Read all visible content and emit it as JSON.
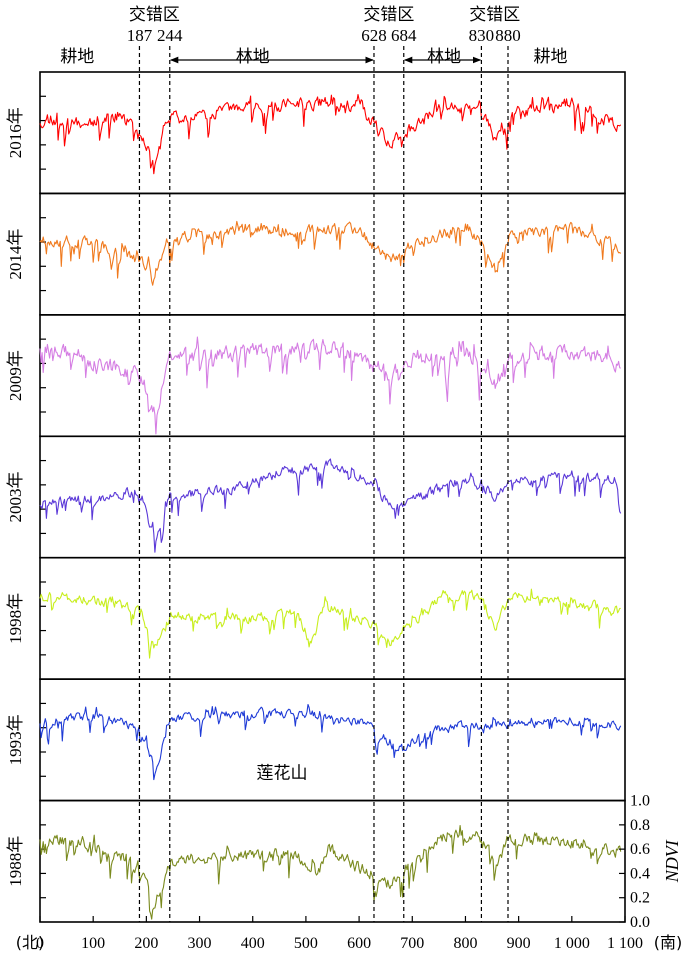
{
  "chart_data": {
    "type": "line",
    "x_axis": {
      "min": 0,
      "max": 1100,
      "ticks": [
        0,
        100,
        200,
        300,
        400,
        500,
        600,
        700,
        800,
        900,
        1000,
        1100
      ],
      "tick_labels": [
        "0",
        "100",
        "200",
        "300",
        "400",
        "500",
        "600",
        "700",
        "800",
        "900",
        "1 000",
        "1 100"
      ],
      "left_label": "(北)",
      "right_label": "(南)"
    },
    "ndvi_axis": {
      "label": "NDVI",
      "min": 0.0,
      "max": 1.0,
      "ticks": [
        0.0,
        0.2,
        0.4,
        0.6,
        0.8,
        1.0
      ],
      "tick_labels": [
        "0.0",
        "0.2",
        "0.4",
        "0.6",
        "0.8",
        "1.0"
      ]
    },
    "boundaries": [
      187,
      244,
      628,
      684,
      830,
      880
    ],
    "zone_labels": [
      {
        "text": "交错区",
        "x": 215
      },
      {
        "text": "交错区",
        "x": 656
      },
      {
        "text": "交错区",
        "x": 855
      }
    ],
    "boundary_labels": [
      {
        "text": "187",
        "x": 187
      },
      {
        "text": "244",
        "x": 244
      },
      {
        "text": "628",
        "x": 628
      },
      {
        "text": "684",
        "x": 684
      },
      {
        "text": "830",
        "x": 830
      },
      {
        "text": "880",
        "x": 880
      }
    ],
    "land_labels": [
      {
        "text": "耕地",
        "x": 70
      },
      {
        "text": "林地",
        "x": 400,
        "arrow_from": 244,
        "arrow_to": 628
      },
      {
        "text": "林地",
        "x": 760,
        "arrow_from": 684,
        "arrow_to": 830
      },
      {
        "text": "耕地",
        "x": 960
      }
    ],
    "annotation": {
      "text": "莲花山",
      "x": 520,
      "panel": "1993年"
    },
    "series": [
      {
        "name": "2016年",
        "color": "#ff0000",
        "seed": 11,
        "base": 0.62,
        "amp": 0.18,
        "profile": [
          [
            0,
            0.6
          ],
          [
            80,
            0.58
          ],
          [
            150,
            0.65
          ],
          [
            187,
            0.45
          ],
          [
            215,
            0.3
          ],
          [
            244,
            0.62
          ],
          [
            400,
            0.7
          ],
          [
            500,
            0.75
          ],
          [
            600,
            0.72
          ],
          [
            628,
            0.55
          ],
          [
            660,
            0.4
          ],
          [
            684,
            0.5
          ],
          [
            760,
            0.72
          ],
          [
            830,
            0.7
          ],
          [
            855,
            0.4
          ],
          [
            880,
            0.66
          ],
          [
            1000,
            0.74
          ],
          [
            1090,
            0.55
          ]
        ]
      },
      {
        "name": "2014年",
        "color": "#f07a1e",
        "seed": 23,
        "base": 0.62,
        "amp": 0.16,
        "profile": [
          [
            0,
            0.62
          ],
          [
            100,
            0.6
          ],
          [
            187,
            0.45
          ],
          [
            215,
            0.35
          ],
          [
            244,
            0.64
          ],
          [
            400,
            0.7
          ],
          [
            600,
            0.7
          ],
          [
            628,
            0.55
          ],
          [
            660,
            0.45
          ],
          [
            684,
            0.55
          ],
          [
            800,
            0.74
          ],
          [
            830,
            0.6
          ],
          [
            855,
            0.35
          ],
          [
            880,
            0.66
          ],
          [
            1000,
            0.72
          ],
          [
            1090,
            0.55
          ]
        ]
      },
      {
        "name": "2009年",
        "color": "#d57ee3",
        "seed": 37,
        "base": 0.65,
        "amp": 0.22,
        "profile": [
          [
            0,
            0.75
          ],
          [
            100,
            0.62
          ],
          [
            187,
            0.5
          ],
          [
            215,
            0.2
          ],
          [
            244,
            0.66
          ],
          [
            400,
            0.7
          ],
          [
            560,
            0.74
          ],
          [
            628,
            0.58
          ],
          [
            660,
            0.5
          ],
          [
            684,
            0.62
          ],
          [
            800,
            0.72
          ],
          [
            830,
            0.55
          ],
          [
            855,
            0.4
          ],
          [
            880,
            0.68
          ],
          [
            1000,
            0.7
          ],
          [
            1090,
            0.6
          ]
        ]
      },
      {
        "name": "2003年",
        "color": "#5b39d8",
        "seed": 41,
        "base": 0.52,
        "amp": 0.14,
        "profile": [
          [
            0,
            0.45
          ],
          [
            120,
            0.5
          ],
          [
            187,
            0.55
          ],
          [
            215,
            0.12
          ],
          [
            244,
            0.52
          ],
          [
            350,
            0.55
          ],
          [
            450,
            0.7
          ],
          [
            550,
            0.78
          ],
          [
            628,
            0.6
          ],
          [
            660,
            0.4
          ],
          [
            684,
            0.45
          ],
          [
            780,
            0.62
          ],
          [
            830,
            0.6
          ],
          [
            855,
            0.5
          ],
          [
            880,
            0.62
          ],
          [
            1000,
            0.68
          ],
          [
            1080,
            0.65
          ],
          [
            1090,
            0.35
          ]
        ]
      },
      {
        "name": "1998年",
        "color": "#c8ee1e",
        "seed": 53,
        "base": 0.55,
        "amp": 0.14,
        "profile": [
          [
            0,
            0.7
          ],
          [
            150,
            0.62
          ],
          [
            187,
            0.55
          ],
          [
            215,
            0.25
          ],
          [
            244,
            0.52
          ],
          [
            400,
            0.5
          ],
          [
            480,
            0.55
          ],
          [
            510,
            0.3
          ],
          [
            530,
            0.6
          ],
          [
            628,
            0.45
          ],
          [
            660,
            0.3
          ],
          [
            684,
            0.4
          ],
          [
            760,
            0.7
          ],
          [
            830,
            0.68
          ],
          [
            855,
            0.4
          ],
          [
            880,
            0.68
          ],
          [
            1000,
            0.62
          ],
          [
            1090,
            0.55
          ]
        ]
      },
      {
        "name": "1993年",
        "color": "#1f3bd6",
        "seed": 67,
        "base": 0.66,
        "amp": 0.12,
        "profile": [
          [
            0,
            0.65
          ],
          [
            100,
            0.7
          ],
          [
            187,
            0.6
          ],
          [
            215,
            0.25
          ],
          [
            244,
            0.68
          ],
          [
            400,
            0.72
          ],
          [
            560,
            0.7
          ],
          [
            628,
            0.6
          ],
          [
            660,
            0.45
          ],
          [
            684,
            0.45
          ],
          [
            760,
            0.62
          ],
          [
            830,
            0.62
          ],
          [
            880,
            0.62
          ],
          [
            1000,
            0.66
          ],
          [
            1090,
            0.62
          ]
        ]
      },
      {
        "name": "1988年",
        "color": "#7a8a1e",
        "seed": 79,
        "base": 0.55,
        "amp": 0.17,
        "profile": [
          [
            0,
            0.7
          ],
          [
            100,
            0.62
          ],
          [
            187,
            0.5
          ],
          [
            215,
            0.15
          ],
          [
            244,
            0.5
          ],
          [
            400,
            0.56
          ],
          [
            480,
            0.55
          ],
          [
            520,
            0.4
          ],
          [
            540,
            0.6
          ],
          [
            628,
            0.38
          ],
          [
            660,
            0.3
          ],
          [
            684,
            0.45
          ],
          [
            760,
            0.72
          ],
          [
            830,
            0.7
          ],
          [
            855,
            0.45
          ],
          [
            880,
            0.7
          ],
          [
            1000,
            0.65
          ],
          [
            1090,
            0.58
          ]
        ]
      }
    ]
  }
}
